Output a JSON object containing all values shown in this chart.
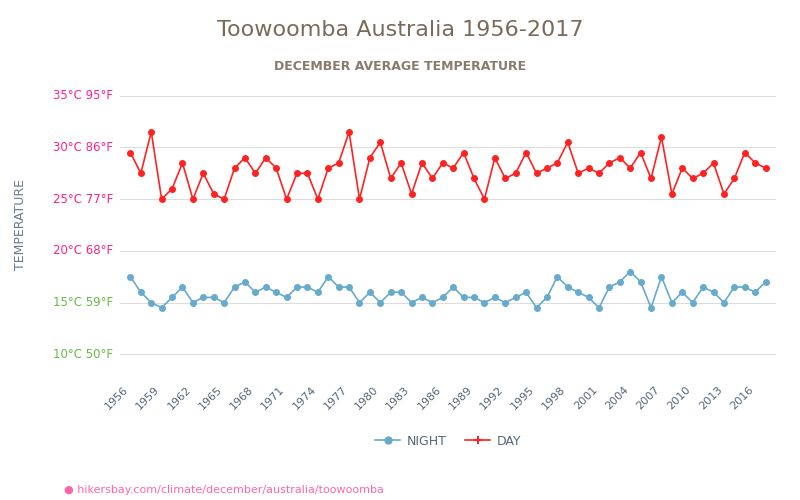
{
  "title": "Toowoomba Australia 1956-2017",
  "subtitle": "DECEMBER AVERAGE TEMPERATURE",
  "ylabel": "TEMPERATURE",
  "url": "hikersbay.com/climate/december/australia/toowoomba",
  "years": [
    1956,
    1957,
    1958,
    1959,
    1960,
    1961,
    1962,
    1963,
    1964,
    1965,
    1966,
    1967,
    1968,
    1969,
    1970,
    1971,
    1972,
    1973,
    1974,
    1975,
    1976,
    1977,
    1978,
    1979,
    1980,
    1981,
    1982,
    1983,
    1984,
    1985,
    1986,
    1987,
    1988,
    1989,
    1990,
    1991,
    1992,
    1993,
    1994,
    1995,
    1996,
    1997,
    1998,
    1999,
    2000,
    2001,
    2002,
    2003,
    2004,
    2005,
    2006,
    2007,
    2008,
    2009,
    2010,
    2011,
    2012,
    2013,
    2014,
    2015,
    2016,
    2017
  ],
  "day_temps": [
    29.5,
    27.5,
    31.5,
    25.0,
    26.0,
    28.5,
    25.0,
    27.5,
    25.5,
    25.0,
    28.0,
    29.0,
    27.5,
    29.0,
    28.0,
    25.0,
    27.5,
    27.5,
    25.0,
    28.0,
    28.5,
    31.5,
    25.0,
    29.0,
    30.5,
    27.0,
    28.5,
    25.5,
    28.5,
    27.0,
    28.5,
    28.0,
    29.5,
    27.0,
    25.0,
    29.0,
    27.0,
    27.5,
    29.5,
    27.5,
    28.0,
    28.5,
    30.5,
    27.5,
    28.0,
    27.5,
    28.5,
    29.0,
    28.0,
    29.5,
    27.0,
    31.0,
    25.5,
    28.0,
    27.0,
    27.5,
    28.5,
    25.5,
    27.0,
    29.5,
    28.5,
    28.0
  ],
  "night_temps": [
    17.5,
    16.0,
    15.0,
    14.5,
    15.5,
    16.5,
    15.0,
    15.5,
    15.5,
    15.0,
    16.5,
    17.0,
    16.0,
    16.5,
    16.0,
    15.5,
    16.5,
    16.5,
    16.0,
    17.5,
    16.5,
    16.5,
    15.0,
    16.0,
    15.0,
    16.0,
    16.0,
    15.0,
    15.5,
    15.0,
    15.5,
    16.5,
    15.5,
    15.5,
    15.0,
    15.5,
    15.0,
    15.5,
    16.0,
    14.5,
    15.5,
    17.5,
    16.5,
    16.0,
    15.5,
    14.5,
    16.5,
    17.0,
    18.0,
    17.0,
    14.5,
    17.5,
    15.0,
    16.0,
    15.0,
    16.5,
    16.0,
    15.0,
    16.5,
    16.5,
    16.0,
    17.0
  ],
  "day_color": "#ff2222",
  "night_color": "#66aacc",
  "title_color": "#7a6a5a",
  "subtitle_color": "#8a7a6a",
  "ylabel_color": "#6a7a8a",
  "axis_label_color": "#ff2288",
  "green_label_color": "#66bb44",
  "tick_color": "#aaaaaa",
  "grid_color": "#dddddd",
  "url_color": "#ff66aa",
  "background_color": "#ffffff",
  "ylim_min": 8,
  "ylim_max": 37,
  "yticks_celsius": [
    10,
    15,
    20,
    25,
    30,
    35
  ],
  "ytick_labels_pink": [
    30,
    25,
    20
  ],
  "ytick_labels_green": [
    15,
    10
  ],
  "xtick_years": [
    1956,
    1959,
    1962,
    1965,
    1968,
    1971,
    1974,
    1977,
    1980,
    1983,
    1986,
    1989,
    1992,
    1995,
    1998,
    2001,
    2004,
    2007,
    2010,
    2013,
    2016
  ]
}
